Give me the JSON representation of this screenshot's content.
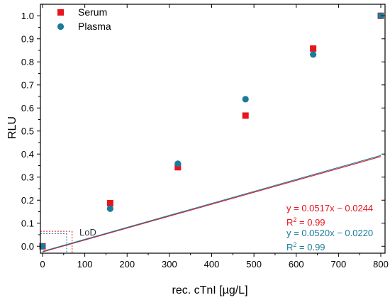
{
  "chart_data": {
    "type": "scatter",
    "xlabel": "rec. cTnI [µg/L]",
    "ylabel": "RLU",
    "xlim": [
      -5,
      810
    ],
    "ylim": [
      -0.03,
      1.05
    ],
    "x_ticks": [
      0,
      100,
      200,
      300,
      400,
      500,
      600,
      700,
      800
    ],
    "x_tick_labels": [
      "0",
      "100",
      "200",
      "300",
      "400",
      "500",
      "600",
      "700",
      "800"
    ],
    "y_ticks": [
      0.0,
      0.1,
      0.2,
      0.3,
      0.4,
      0.5,
      0.6,
      0.7,
      0.8,
      0.9,
      1.0
    ],
    "y_tick_labels": [
      "0.0",
      "0.1",
      "0.2",
      "0.3",
      "0.4",
      "0.5",
      "0.6",
      "0.7",
      "0.8",
      "0.9",
      "1.0"
    ],
    "grid": false,
    "legend_position": "top-left",
    "series": [
      {
        "name": "Serum",
        "marker": "square",
        "color": "#e8141e",
        "x": [
          0,
          160,
          320,
          480,
          640,
          800
        ],
        "y": [
          0.0,
          0.187,
          0.343,
          0.567,
          0.858,
          1.0
        ],
        "fit": {
          "slope": 0.0517,
          "intercept": -0.0244,
          "x_scale": 0.01
        },
        "equation": "y = 0.0517x − 0.0244",
        "r2_label": "R",
        "r2_sup": "2",
        "r2_value": " = 0.99",
        "lod": {
          "x": 70,
          "y": 0.065
        }
      },
      {
        "name": "Plasma",
        "marker": "circle",
        "color": "#1a7b9a",
        "x": [
          0,
          160,
          320,
          480,
          640,
          800
        ],
        "y": [
          0.0,
          0.163,
          0.358,
          0.638,
          0.832,
          1.0
        ],
        "fit": {
          "slope": 0.052,
          "intercept": -0.022,
          "x_scale": 0.01
        },
        "equation": "y = 0.0520x − 0.0220",
        "r2_label": "R",
        "r2_sup": "2",
        "r2_value": " = 0.99",
        "lod": {
          "x": 57,
          "y": 0.055
        }
      }
    ],
    "annotations": {
      "lod_label": "LoD"
    }
  }
}
